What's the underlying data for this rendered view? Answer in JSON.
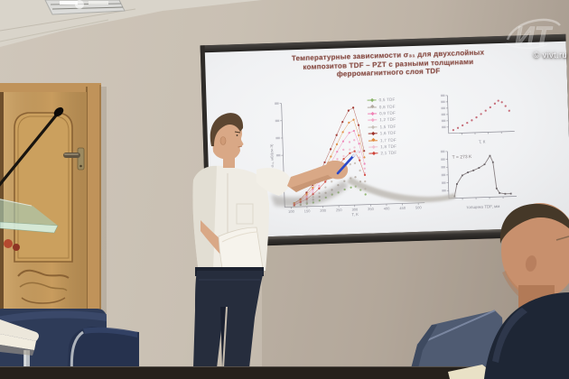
{
  "watermark": {
    "logo_text": "ИТ",
    "site": "© vivt.ru"
  },
  "slide": {
    "title_lines": [
      "Температурные  зависимости  σ₃₁  для  двухслойных",
      "композитов  TDF – PZT  с  разными  толщинами",
      "ферромагнитного  слоя  TDF"
    ],
    "legend": [
      {
        "label": "0,5 TDF",
        "color": "#8ab469"
      },
      {
        "label": "0,8 TDF",
        "color": "#b3aaa2"
      },
      {
        "label": "0,9 TDF",
        "color": "#ef83b5"
      },
      {
        "label": "1,2 TDF",
        "color": "#f3a9c9"
      },
      {
        "label": "1,5 TDF",
        "color": "#c6beb6"
      },
      {
        "label": "1,6 TDF",
        "color": "#9d2f27"
      },
      {
        "label": "1,7 TDF",
        "color": "#e08a3c"
      },
      {
        "label": "1,8 TDF",
        "color": "#f1c2d2"
      },
      {
        "label": "2,1 TDF",
        "color": "#cf4237"
      }
    ]
  },
  "chart_data": [
    {
      "type": "scatter",
      "title": "Температурные зависимости σ₃₁ для двухслойных композитов TDF–PZT",
      "xlabel": "Т, К",
      "ylabel": "σ₃₁, мВ/(см·Э)",
      "xlim": [
        80,
        520
      ],
      "ylim": [
        0,
        112
      ],
      "x_ticks": [
        100,
        150,
        200,
        250,
        300,
        350,
        400,
        450,
        500
      ],
      "x": [
        110,
        130,
        150,
        170,
        190,
        210,
        230,
        250,
        270,
        290,
        305,
        320,
        335
      ],
      "series": [
        {
          "name": "0,5 TDF",
          "color": "#8ab469",
          "values": [
            1,
            2,
            3,
            4,
            6,
            9,
            12,
            14,
            17,
            19,
            20,
            16,
            11
          ]
        },
        {
          "name": "0,8 TDF",
          "color": "#b3aaa2",
          "values": [
            1,
            2,
            4,
            7,
            10,
            14,
            17,
            22,
            26,
            29,
            30,
            25,
            17
          ]
        },
        {
          "name": "0,9 TDF",
          "color": "#ef83b5",
          "line": true,
          "values": [
            3,
            6,
            11,
            18,
            26,
            36,
            46,
            58,
            69,
            78,
            80,
            66,
            44
          ]
        },
        {
          "name": "1,2 TDF",
          "color": "#f3a9c9",
          "values": [
            3,
            6,
            10,
            15,
            22,
            32,
            41,
            50,
            60,
            68,
            70,
            57,
            39
          ]
        },
        {
          "name": "1,5 TDF",
          "color": "#c6beb6",
          "values": [
            2,
            4,
            6,
            10,
            14,
            20,
            26,
            32,
            39,
            44,
            45,
            37,
            25
          ]
        },
        {
          "name": "1,6 TDF",
          "color": "#9d2f27",
          "line": true,
          "values": [
            4,
            8,
            15,
            23,
            34,
            47,
            61,
            76,
            90,
            102,
            105,
            86,
            58
          ]
        },
        {
          "name": "1,7 TDF",
          "color": "#e08a3c",
          "line": true,
          "values": [
            4,
            7,
            13,
            20,
            29,
            41,
            53,
            66,
            79,
            89,
            92,
            75,
            51
          ]
        },
        {
          "name": "1,8 TDF",
          "color": "#f1c2d2",
          "values": [
            2,
            5,
            9,
            14,
            20,
            28,
            36,
            45,
            53,
            60,
            62,
            51,
            34
          ]
        },
        {
          "name": "2,1 TDF",
          "color": "#cf4237",
          "line": true,
          "values": [
            2,
            5,
            8,
            13,
            19,
            26,
            34,
            42,
            50,
            56,
            58,
            48,
            32
          ]
        }
      ]
    },
    {
      "type": "scatter",
      "xlabel": "Т, К",
      "xlim": [
        80,
        360
      ],
      "ylim": [
        0,
        95
      ],
      "x_ticks_unlabeled": 4,
      "series": [
        {
          "name": "",
          "color": "#c2606e",
          "x": [
            100,
            120,
            140,
            160,
            180,
            200,
            220,
            240,
            260,
            280,
            295,
            310,
            325,
            340
          ],
          "values": [
            8,
            13,
            19,
            25,
            31,
            38,
            46,
            54,
            62,
            71,
            78,
            74,
            64,
            52
          ]
        }
      ]
    },
    {
      "type": "line",
      "annotation": "T = 273 K",
      "xlabel": "толщина TDF, мм",
      "xlim": [
        0.3,
        2.7
      ],
      "ylim": [
        0,
        100
      ],
      "x_ticks_unlabeled": 4,
      "series": [
        {
          "name": "",
          "color": "#8a8284",
          "x": [
            0.5,
            0.6,
            0.8,
            1.0,
            1.2,
            1.4,
            1.6,
            1.8,
            1.9,
            2.0,
            2.1,
            2.3,
            2.5
          ],
          "values": [
            4,
            30,
            48,
            54,
            58,
            63,
            70,
            88,
            74,
            18,
            8,
            6,
            6
          ]
        }
      ]
    }
  ]
}
